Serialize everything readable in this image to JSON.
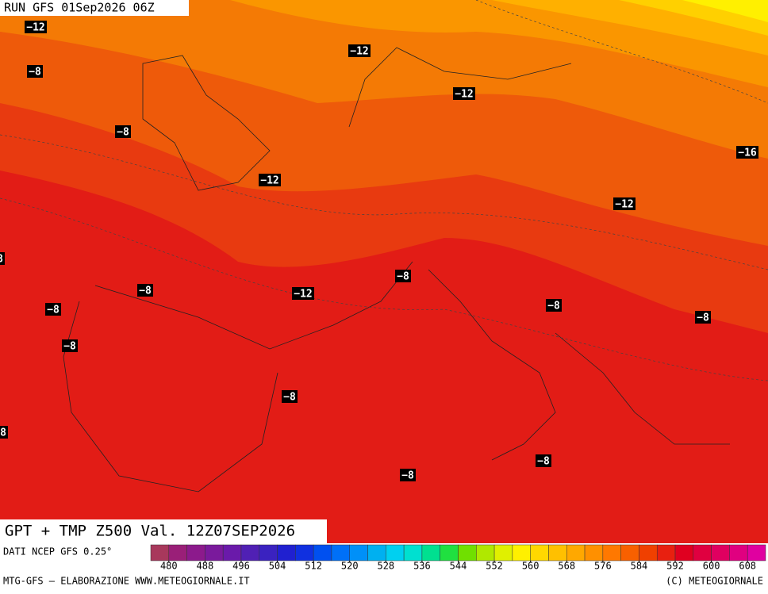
{
  "header": {
    "run": "RUN GFS 01Sep2026 06Z"
  },
  "map": {
    "labels": [
      "−12",
      "−8",
      "−8",
      "−12",
      "−12",
      "−16",
      "−12",
      "−12",
      "−8",
      "−8",
      "−12",
      "−8",
      "−8",
      "−8",
      "−8",
      "−8",
      "−8",
      "−8",
      "8",
      "8"
    ]
  },
  "title": "GPT + TMP Z500 Val. 12Z07SEP2026",
  "source": "DATI NCEP GFS 0.25°",
  "colorbar": {
    "range": [
      476,
      612
    ],
    "ticks": [
      480,
      488,
      496,
      504,
      512,
      520,
      528,
      536,
      544,
      552,
      560,
      568,
      576,
      584,
      592,
      600,
      608
    ],
    "colors": [
      "#a8385c",
      "#9a1f78",
      "#8c1a8c",
      "#7a1a9c",
      "#6a1aaa",
      "#5020b4",
      "#3a22c0",
      "#2020d0",
      "#1030e0",
      "#0050f0",
      "#0070f8",
      "#0090f8",
      "#00b0f0",
      "#00d0f0",
      "#00e0d0",
      "#00e090",
      "#20e040",
      "#70e000",
      "#b0e800",
      "#e0f000",
      "#fff000",
      "#ffd800",
      "#ffc000",
      "#ffa800",
      "#ff9000",
      "#ff7800",
      "#f86000",
      "#f04000",
      "#e82010",
      "#e00020",
      "#e00040",
      "#e00060",
      "#e00080",
      "#e000a0"
    ]
  },
  "footer": {
    "left": "MTG-GFS – ELABORAZIONE WWW.METEOGIORNALE.IT",
    "right": "(C) METEOGIORNALE"
  }
}
